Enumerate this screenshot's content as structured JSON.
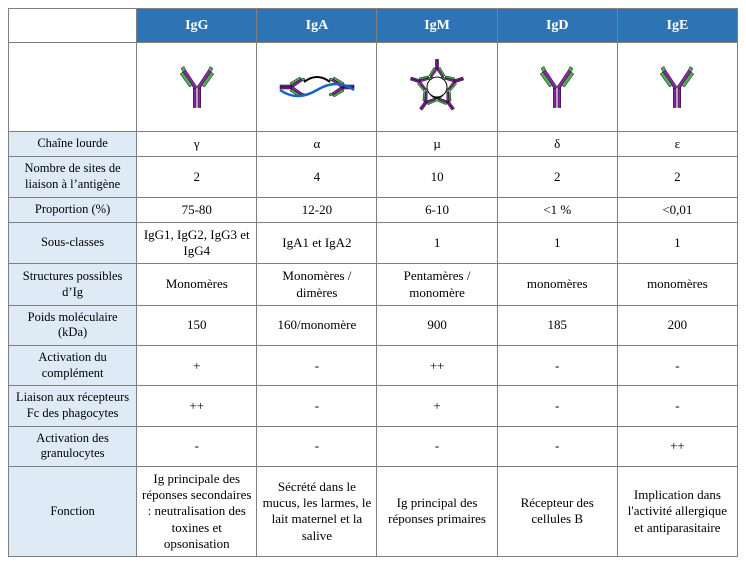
{
  "colors": {
    "header_bg": "#2e74b5",
    "header_text": "#ffffff",
    "rowlabel_bg": "#deeaf6",
    "border": "#7f7f7f",
    "heavy_chain": "#8e24aa",
    "light_chain": "#4caf50",
    "j_chain": "#1565c0",
    "secretory": "#1565c0",
    "outline": "#000000"
  },
  "columns": [
    "IgG",
    "IgA",
    "IgM",
    "IgD",
    "IgE"
  ],
  "rows": [
    {
      "label": "Chaîne lourde",
      "cells": [
        "γ",
        "α",
        "µ",
        "δ",
        "ε"
      ]
    },
    {
      "label": "Nombre de sites de liaison à l’antigène",
      "cells": [
        "2",
        "4",
        "10",
        "2",
        "2"
      ]
    },
    {
      "label": "Proportion (%)",
      "cells": [
        "75-80",
        "12-20",
        "6-10",
        "<1 %",
        "<0,01"
      ]
    },
    {
      "label": "Sous-classes",
      "cells": [
        "IgG1, IgG2, IgG3 et IgG4",
        "IgA1 et IgA2",
        "1",
        "1",
        "1"
      ]
    },
    {
      "label": "Structures possibles d’Ig",
      "cells": [
        "Monomères",
        "Monomères / dimères",
        "Pentamères / monomère",
        "monomères",
        "monomères"
      ]
    },
    {
      "label": "Poids moléculaire (kDa)",
      "cells": [
        "150",
        "160/monomère",
        "900",
        "185",
        "200"
      ]
    },
    {
      "label": "Activation du complément",
      "cells": [
        "+",
        "-",
        "++",
        "-",
        "-"
      ]
    },
    {
      "label": "Liaison aux récepteurs Fc des phagocytes",
      "cells": [
        "++",
        "-",
        "+",
        "-",
        "-"
      ]
    },
    {
      "label": "Activation des granulocytes",
      "cells": [
        "-",
        "-",
        "-",
        "-",
        "++"
      ]
    },
    {
      "label": "Fonction",
      "cells": [
        "Ig principale des réponses secondaires : neutralisation  des toxines et opsonisation",
        "Sécrété dans le mucus, les larmes, le lait maternel et la salive",
        "Ig principal des réponses primaires",
        "Récepteur des cellules B",
        "Implication dans l'activité allergique et antiparasitaire"
      ]
    }
  ],
  "visuals": [
    "monomer",
    "dimer",
    "pentamer",
    "monomer",
    "monomer"
  ]
}
